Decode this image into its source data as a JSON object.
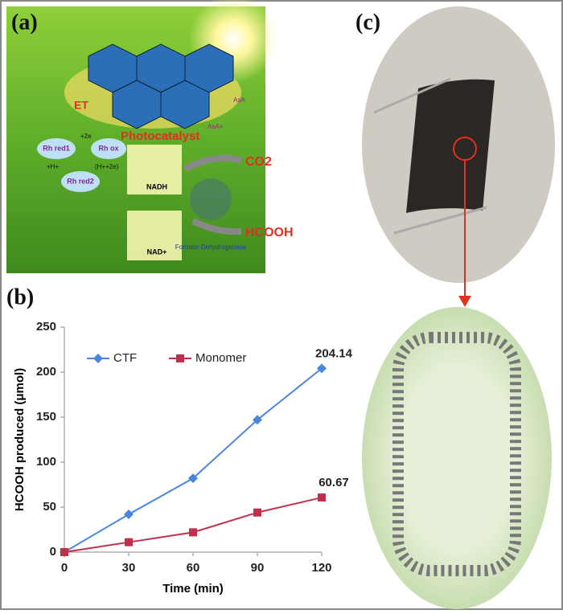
{
  "panel_a": {
    "label": "(a)",
    "et": "ET",
    "photocatalyst": "Photocatalyst",
    "rh_red1": "Rh red1",
    "rh_ox": "Rh ox",
    "rh_red2": "Rh red2",
    "plus_2e": "+2e",
    "plus_h": "+H+",
    "h_2e": "(H++2e)",
    "nadh": "NADH",
    "nad": "NAD+",
    "co2": "CO2",
    "hcooh": "HCOOH",
    "enzyme": "Formate Dehydrogenase",
    "asa": "AsA",
    "asa_plus": "AsA+"
  },
  "chart_data": {
    "type": "line",
    "panel_label": "(b)",
    "x_label": "Time (min)",
    "y_label": "HCOOH produced (μmol)",
    "x": [
      0,
      30,
      60,
      90,
      120
    ],
    "series": [
      {
        "name": "CTF",
        "color": "#4a86e0",
        "marker": "diamond",
        "values": [
          0,
          42,
          82,
          147,
          204.14
        ]
      },
      {
        "name": "Monomer",
        "color": "#c0304a",
        "marker": "square",
        "values": [
          0,
          11,
          22,
          44,
          60.67
        ]
      }
    ],
    "xlim": [
      0,
      120
    ],
    "xticks": [
      0,
      30,
      60,
      90,
      120
    ],
    "ylim": [
      0,
      250
    ],
    "yticks": [
      0,
      50,
      100,
      150,
      200,
      250
    ],
    "grid": false,
    "legend": "upper left"
  },
  "panel_c": {
    "label": "(c)"
  }
}
